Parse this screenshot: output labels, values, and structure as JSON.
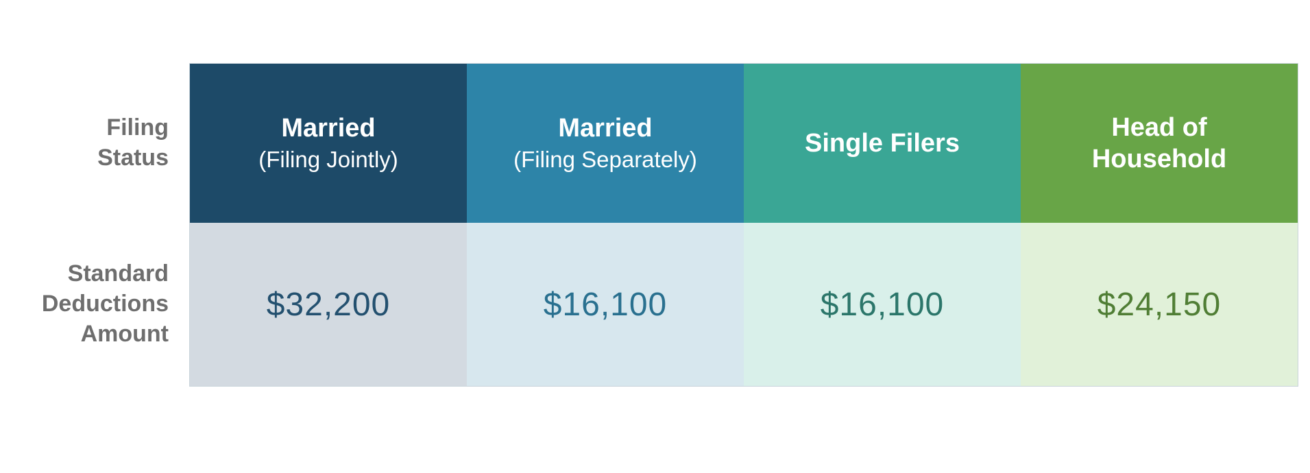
{
  "page": {
    "background": "#ffffff"
  },
  "text_colors": {
    "row_label": "#6e6e6e",
    "header_text": "#ffffff"
  },
  "row_labels": {
    "filing_status": "Filing\nStatus",
    "standard_deductions": "Standard\nDeductions\nAmount"
  },
  "columns": [
    {
      "id": "married-filing-jointly",
      "title": "Married",
      "subtitle": "(Filing Jointly)",
      "value": "$32,200",
      "header_bg": "#1d4a68",
      "cell_bg": "#d3dae1",
      "value_color": "#23506f"
    },
    {
      "id": "married-filing-separately",
      "title": "Married",
      "subtitle": "(Filing Separately)",
      "value": "$16,100",
      "header_bg": "#2d84a8",
      "cell_bg": "#d7e7ee",
      "value_color": "#29708f"
    },
    {
      "id": "single-filers",
      "title": "Single Filers",
      "subtitle": "",
      "value": "$16,100",
      "header_bg": "#3aa695",
      "cell_bg": "#d9f0ea",
      "value_color": "#2b766a"
    },
    {
      "id": "head-of-household",
      "title": "Head of\nHousehold",
      "subtitle": "",
      "value": "$24,150",
      "header_bg": "#68a547",
      "cell_bg": "#e1f1d9",
      "value_color": "#507e35"
    }
  ],
  "chart_data": {
    "type": "table",
    "columns": [
      "Married (Filing Jointly)",
      "Married (Filing Separately)",
      "Single Filers",
      "Head of Household"
    ],
    "rows": [
      {
        "label": "Filing Status",
        "values": [
          "Married (Filing Jointly)",
          "Married (Filing Separately)",
          "Single Filers",
          "Head of Household"
        ]
      },
      {
        "label": "Standard Deductions Amount",
        "values": [
          "$32,200",
          "$16,100",
          "$16,100",
          "$24,150"
        ]
      }
    ],
    "numeric_values": [
      32200,
      16100,
      16100,
      24150
    ]
  }
}
